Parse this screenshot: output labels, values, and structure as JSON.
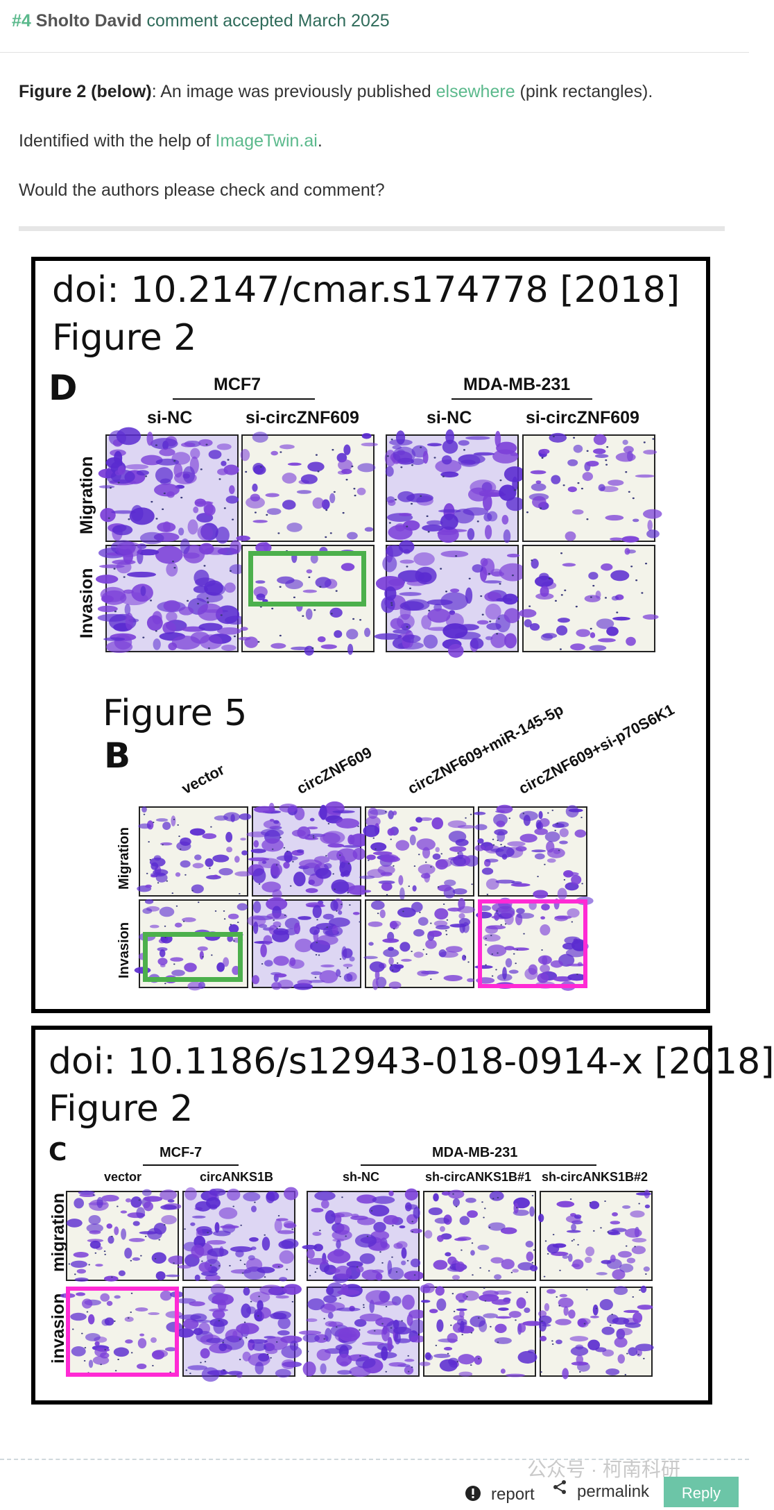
{
  "comment": {
    "number": "#4",
    "author": "Sholto David",
    "note": "comment accepted March 2025",
    "fig_label": "Figure 2 (below)",
    "line1_mid": ": An image was previously published ",
    "line1_link": "elsewhere",
    "line1_end": " (pink rectangles).",
    "line2_start": "Identified with the help of ",
    "line2_link": "ImageTwin.ai",
    "line2_end": ".",
    "line3": "Would the authors please check and comment?"
  },
  "box1": {
    "doi": "doi: 10.2147/cmar.s174778 [2018]",
    "figure": "Figure 2",
    "panel": "D",
    "group1": "MCF7",
    "group2": "MDA-MB-231",
    "cols": [
      "si-NC",
      "si-circZNF609",
      "si-NC",
      "si-circZNF609"
    ],
    "rows": [
      "Migration",
      "Invasion"
    ],
    "fig5_title": "Figure 5",
    "fig5_panel": "B",
    "fig5_cols": [
      "vector",
      "circZNF609",
      "circZNF609+miR-145-5p",
      "circZNF609+si-p70S6K1"
    ],
    "fig5_rows": [
      "Migration",
      "Invasion"
    ]
  },
  "box2": {
    "doi": "doi: 10.1186/s12943-018-0914-x [2018]",
    "figure": "Figure 2",
    "panel": "C",
    "group1": "MCF-7",
    "group2": "MDA-MB-231",
    "cols": [
      "vector",
      "circANKS1B",
      "sh-NC",
      "sh-circANKS1B#1",
      "sh-circANKS1B#2"
    ],
    "rows": [
      "migration",
      "invasion"
    ]
  },
  "footer": {
    "report": "report",
    "permalink": "permalink",
    "reply": "Reply",
    "watermark": "公众号 · 柯南科研"
  },
  "colors": {
    "accent": "#5bb98c",
    "green_box": "#4cb04c",
    "pink_box": "#ff2ad4",
    "stain": "#5a2bd0"
  }
}
